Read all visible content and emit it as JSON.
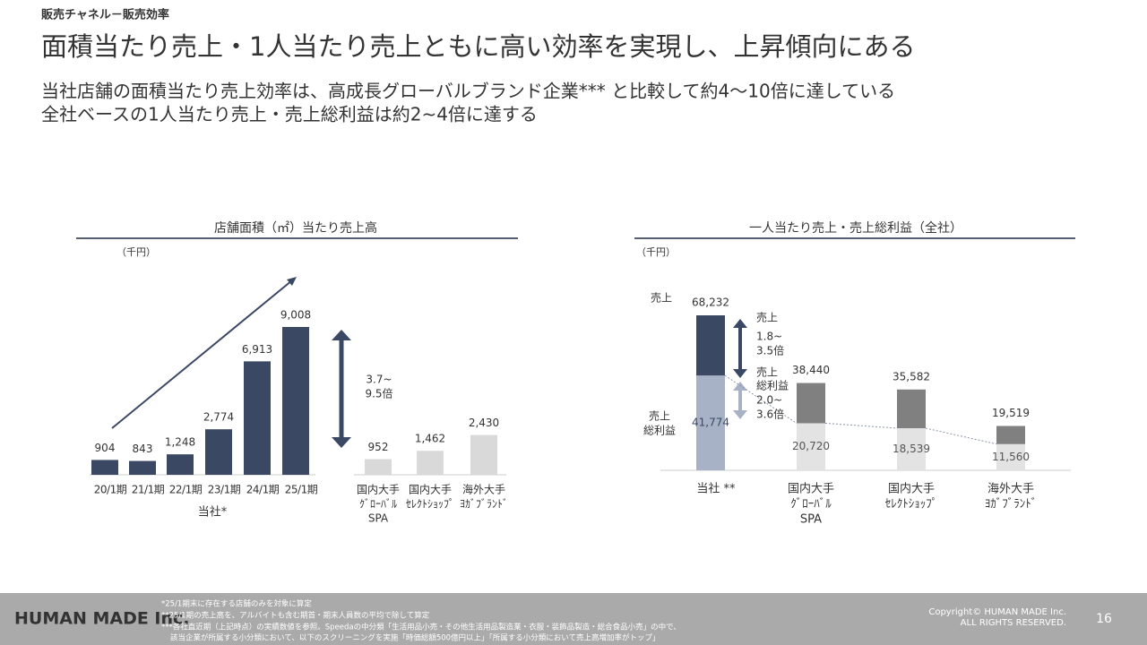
{
  "header": {
    "section": "販売チャネル－販売効率",
    "title": "面積当たり売上・1人当たり売上ともに高い効率を実現し、上昇傾向にある",
    "subtitle": [
      "当社店舗の面積当たり売上効率は、高成長グローバルブランド企業*** と比較して約4～10倍に達している",
      "全社ベースの1人当たり売上・売上総利益は約2~4倍に達する"
    ]
  },
  "chart_data": [
    {
      "type": "bar",
      "title": "店舗面積（㎡）当たり売上高",
      "unit": "（千円）",
      "categories": [
        [
          "20/1期"
        ],
        [
          "21/1期"
        ],
        [
          "22/1期"
        ],
        [
          "23/1期"
        ],
        [
          "24/1期"
        ],
        [
          "25/1期"
        ],
        [
          "国内大手",
          "ｸﾞﾛｰﾊﾞﾙ",
          "SPA"
        ],
        [
          "国内大手",
          "ｾﾚｸﾄｼｮｯﾌﾟ"
        ],
        [
          "海外大手",
          "ﾖｶﾞﾌﾞﾗﾝﾄﾞ"
        ]
      ],
      "values": [
        904,
        843,
        1248,
        2774,
        6913,
        9008,
        952,
        1462,
        2430
      ],
      "value_labels": [
        "904",
        "843",
        "1,248",
        "2,774",
        "6,913",
        "9,008",
        "952",
        "1,462",
        "2,430"
      ],
      "colors": [
        "#3b4863",
        "#3b4863",
        "#3b4863",
        "#3b4863",
        "#3b4863",
        "#3b4863",
        "#d9d9d9",
        "#d9d9d9",
        "#d9d9d9"
      ],
      "group_label": "当社*",
      "annotation": [
        "3.7~",
        "9.5倍"
      ]
    },
    {
      "type": "overlay_bar",
      "title": "一人当たり売上・売上総利益（全社）",
      "unit": "（千円）",
      "categories": [
        [
          "当社 **"
        ],
        [
          "国内大手",
          "ｸﾞﾛｰﾊﾞﾙ",
          "SPA"
        ],
        [
          "国内大手",
          "ｾﾚｸﾄｼｮｯﾌﾟ"
        ],
        [
          "海外大手",
          "ﾖｶﾞﾌﾞﾗﾝﾄﾞ"
        ]
      ],
      "series": [
        {
          "name": [
            "売上"
          ],
          "colors": [
            "#3b4863",
            "#808080",
            "#808080",
            "#808080"
          ],
          "values": [
            68232,
            38440,
            35582,
            19519
          ],
          "value_labels": [
            "68,232",
            "38,440",
            "35,582",
            "19,519"
          ]
        },
        {
          "name": [
            "売上",
            "総利益"
          ],
          "colors": [
            "#a7b2c6",
            "#e3e3e3",
            "#e3e3e3",
            "#e3e3e3"
          ],
          "values": [
            41774,
            20720,
            18539,
            11560
          ],
          "value_labels": [
            "41,774",
            "20,720",
            "18,539",
            "11,560"
          ]
        }
      ],
      "annotations": [
        {
          "label": [
            "売上"
          ],
          "ratio": [
            "1.8~",
            "3.5倍"
          ]
        },
        {
          "label": [
            "売上",
            "総利益"
          ],
          "ratio": [
            "2.0~",
            "3.6倍"
          ]
        }
      ]
    }
  ],
  "footer": {
    "logo": "HUMAN MADE Inc.",
    "notes": [
      "*25/1期末に存在する店舗のみを対象に算定",
      "**25/1期の売上高を、アルバイトも含む期首・期末人員数の平均で除して算定",
      "***各社直近期（上記時点）の実績数値を参照。Speedaの中分類「生活用品小売・その他生活用品製造業・衣服・装飾品製造・総合食品小売」の中で、",
      "該当企業が所属する小分類において、以下のスクリーニングを実施「時価総額500億円以上」「所属する小分類において売上高増加率がトップ」"
    ],
    "copyright": [
      "Copyright© HUMAN MADE Inc.",
      "ALL RIGHTS RESERVED."
    ],
    "page": "16"
  }
}
